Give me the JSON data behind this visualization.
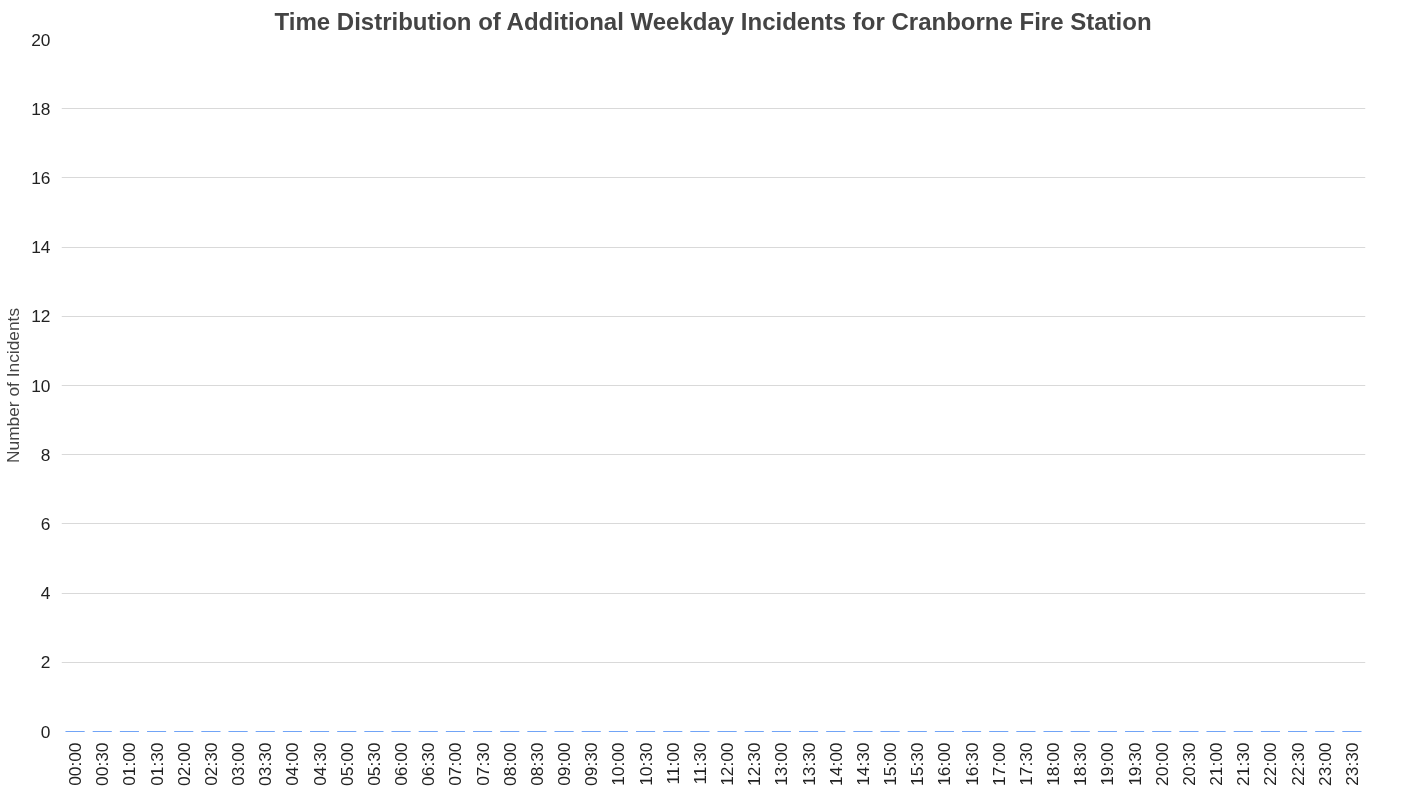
{
  "chart_data": {
    "type": "bar",
    "title": "Time Distribution of Additional Weekday Incidents for Cranborne Fire Station",
    "ylabel": "Number of Incidents",
    "categories": [
      "00:00",
      "00:30",
      "01:00",
      "01:30",
      "02:00",
      "02:30",
      "03:00",
      "03:30",
      "04:00",
      "04:30",
      "05:00",
      "05:30",
      "06:00",
      "06:30",
      "07:00",
      "07:30",
      "08:00",
      "08:30",
      "09:00",
      "09:30",
      "10:00",
      "10:30",
      "11:00",
      "11:30",
      "12:00",
      "12:30",
      "13:00",
      "13:30",
      "14:00",
      "14:30",
      "15:00",
      "15:30",
      "16:00",
      "16:30",
      "17:00",
      "17:30",
      "18:00",
      "18:30",
      "19:00",
      "19:30",
      "20:00",
      "20:30",
      "21:00",
      "21:30",
      "22:00",
      "22:30",
      "23:00",
      "23:30"
    ],
    "values": [
      0,
      0,
      0,
      0,
      0,
      0,
      0,
      0,
      0,
      0,
      0,
      0,
      0,
      0,
      0,
      0,
      0,
      0,
      0,
      0,
      0,
      0,
      0,
      0,
      0,
      0,
      0,
      0,
      0,
      0,
      0,
      0,
      0,
      0,
      0,
      0,
      0,
      0,
      0,
      0,
      0,
      0,
      0,
      0,
      0,
      0,
      0,
      0
    ],
    "color": "#4285f4",
    "ylim": [
      0,
      20
    ],
    "yticks": [
      0,
      2,
      4,
      6,
      8,
      10,
      12,
      14,
      16,
      18,
      20
    ],
    "grid": "y"
  }
}
